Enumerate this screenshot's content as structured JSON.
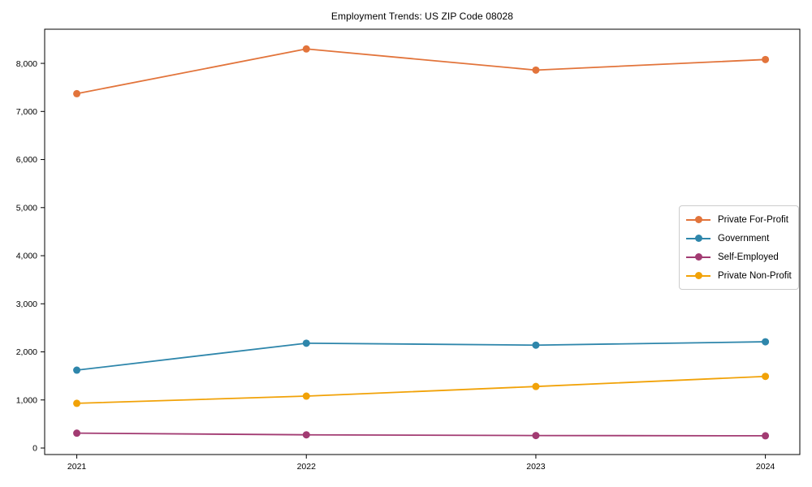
{
  "chart_data": {
    "type": "line",
    "title": "Employment Trends: US ZIP Code 08028",
    "xlabel": "",
    "ylabel": "",
    "x": [
      2021,
      2022,
      2023,
      2024
    ],
    "x_tick_labels": [
      "2021",
      "2022",
      "2023",
      "2024"
    ],
    "series": [
      {
        "name": "Private For-Profit",
        "color": "#E2743B",
        "values": [
          7370,
          8300,
          7860,
          8080
        ]
      },
      {
        "name": "Government",
        "color": "#2E86AB",
        "values": [
          1620,
          2180,
          2140,
          2210
        ]
      },
      {
        "name": "Self-Employed",
        "color": "#A23B72",
        "values": [
          310,
          275,
          260,
          255
        ]
      },
      {
        "name": "Private Non-Profit",
        "color": "#F1A208",
        "values": [
          930,
          1080,
          1280,
          1490
        ]
      }
    ],
    "y_ticks": [
      0,
      1000,
      2000,
      3000,
      4000,
      5000,
      6000,
      7000,
      8000
    ],
    "ylim": [
      -135,
      8710
    ],
    "xlim": [
      2020.86,
      2024.15
    ],
    "grid": false,
    "legend_position": "center-right",
    "background": "#ffffff",
    "axis_color": "#000000"
  }
}
